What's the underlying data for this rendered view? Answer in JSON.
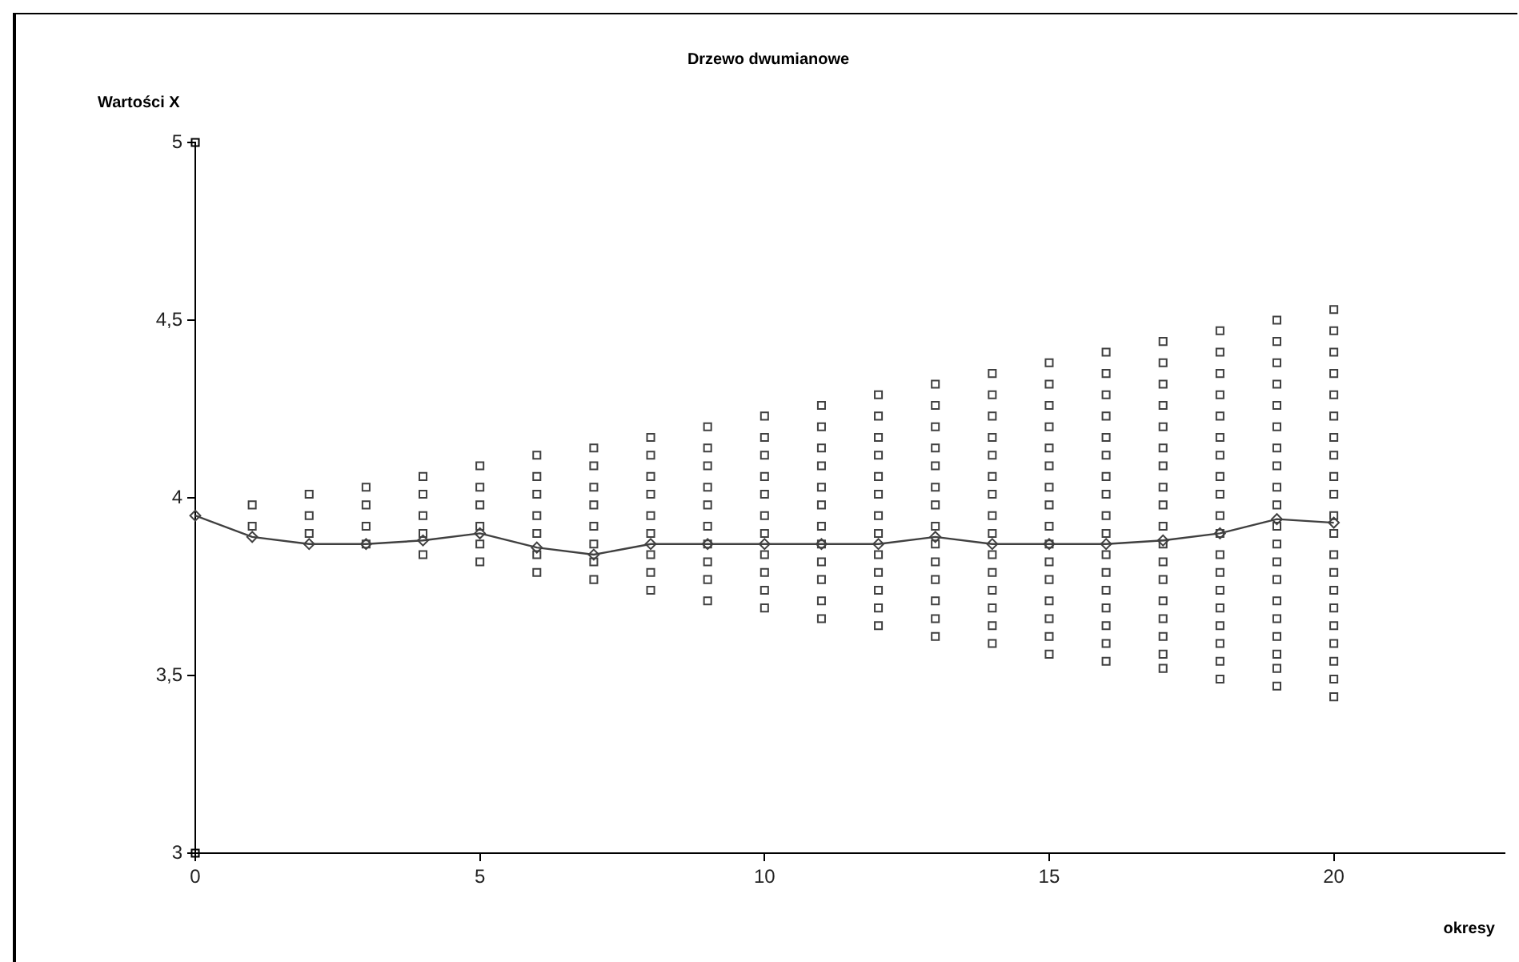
{
  "chart_data": {
    "type": "scatter",
    "title": "Drzewo dwumianowe",
    "xlabel": "okresy",
    "ylabel": "Wartości X",
    "xlim": [
      0,
      23
    ],
    "xticks": [
      0,
      5,
      10,
      15,
      20
    ],
    "ylim": [
      3,
      5
    ],
    "yticks": [
      3,
      {
        "value": 3.5,
        "label": "3,5"
      },
      4,
      {
        "value": 4.5,
        "label": "4,5"
      },
      5
    ],
    "grid": false,
    "legend": false,
    "series": [
      {
        "type": "scatter",
        "marker": "square",
        "color": "#404040",
        "x": [
          1,
          1,
          2,
          2,
          2,
          3,
          3,
          3,
          3,
          4,
          4,
          4,
          4,
          4,
          5,
          5,
          5,
          5,
          5,
          5,
          6,
          6,
          6,
          6,
          6,
          6,
          6,
          7,
          7,
          7,
          7,
          7,
          7,
          7,
          7,
          8,
          8,
          8,
          8,
          8,
          8,
          8,
          8,
          8,
          9,
          9,
          9,
          9,
          9,
          9,
          9,
          9,
          9,
          9,
          10,
          10,
          10,
          10,
          10,
          10,
          10,
          10,
          10,
          10,
          10,
          11,
          11,
          11,
          11,
          11,
          11,
          11,
          11,
          11,
          11,
          11,
          11,
          12,
          12,
          12,
          12,
          12,
          12,
          12,
          12,
          12,
          12,
          12,
          12,
          12,
          13,
          13,
          13,
          13,
          13,
          13,
          13,
          13,
          13,
          13,
          13,
          13,
          13,
          13,
          14,
          14,
          14,
          14,
          14,
          14,
          14,
          14,
          14,
          14,
          14,
          14,
          14,
          14,
          14,
          15,
          15,
          15,
          15,
          15,
          15,
          15,
          15,
          15,
          15,
          15,
          15,
          15,
          15,
          15,
          15,
          16,
          16,
          16,
          16,
          16,
          16,
          16,
          16,
          16,
          16,
          16,
          16,
          16,
          16,
          16,
          16,
          16,
          17,
          17,
          17,
          17,
          17,
          17,
          17,
          17,
          17,
          17,
          17,
          17,
          17,
          17,
          17,
          17,
          17,
          17,
          18,
          18,
          18,
          18,
          18,
          18,
          18,
          18,
          18,
          18,
          18,
          18,
          18,
          18,
          18,
          18,
          18,
          18,
          18,
          19,
          19,
          19,
          19,
          19,
          19,
          19,
          19,
          19,
          19,
          19,
          19,
          19,
          19,
          19,
          19,
          19,
          19,
          19,
          19,
          20,
          20,
          20,
          20,
          20,
          20,
          20,
          20,
          20,
          20,
          20,
          20,
          20,
          20,
          20,
          20,
          20,
          20,
          20,
          20,
          20
        ],
        "values": [
          3.98,
          3.92,
          4.01,
          3.95,
          3.9,
          4.03,
          3.98,
          3.92,
          3.87,
          4.06,
          4.01,
          3.95,
          3.9,
          3.84,
          4.09,
          4.03,
          3.98,
          3.92,
          3.87,
          3.82,
          4.12,
          4.06,
          4.01,
          3.95,
          3.9,
          3.84,
          3.79,
          4.14,
          4.09,
          4.03,
          3.98,
          3.92,
          3.87,
          3.82,
          3.77,
          4.17,
          4.12,
          4.06,
          4.01,
          3.95,
          3.9,
          3.84,
          3.79,
          3.74,
          4.2,
          4.14,
          4.09,
          4.03,
          3.98,
          3.92,
          3.87,
          3.82,
          3.77,
          3.71,
          4.23,
          4.17,
          4.12,
          4.06,
          4.01,
          3.95,
          3.9,
          3.84,
          3.79,
          3.74,
          3.69,
          4.26,
          4.2,
          4.14,
          4.09,
          4.03,
          3.98,
          3.92,
          3.87,
          3.82,
          3.77,
          3.71,
          3.66,
          4.29,
          4.23,
          4.17,
          4.12,
          4.06,
          4.01,
          3.95,
          3.9,
          3.84,
          3.79,
          3.74,
          3.69,
          3.64,
          4.32,
          4.26,
          4.2,
          4.14,
          4.09,
          4.03,
          3.98,
          3.92,
          3.87,
          3.82,
          3.77,
          3.71,
          3.66,
          3.61,
          4.35,
          4.29,
          4.23,
          4.17,
          4.12,
          4.06,
          4.01,
          3.95,
          3.9,
          3.84,
          3.79,
          3.74,
          3.69,
          3.64,
          3.59,
          4.38,
          4.32,
          4.26,
          4.2,
          4.14,
          4.09,
          4.03,
          3.98,
          3.92,
          3.87,
          3.82,
          3.77,
          3.71,
          3.66,
          3.61,
          3.56,
          4.41,
          4.35,
          4.29,
          4.23,
          4.17,
          4.12,
          4.06,
          4.01,
          3.95,
          3.9,
          3.84,
          3.79,
          3.74,
          3.69,
          3.64,
          3.59,
          3.54,
          4.44,
          4.38,
          4.32,
          4.26,
          4.2,
          4.14,
          4.09,
          4.03,
          3.98,
          3.92,
          3.87,
          3.82,
          3.77,
          3.71,
          3.66,
          3.61,
          3.56,
          3.52,
          4.47,
          4.41,
          4.35,
          4.29,
          4.23,
          4.17,
          4.12,
          4.06,
          4.01,
          3.95,
          3.9,
          3.84,
          3.79,
          3.74,
          3.69,
          3.64,
          3.59,
          3.54,
          3.49,
          4.5,
          4.44,
          4.38,
          4.32,
          4.26,
          4.2,
          4.14,
          4.09,
          4.03,
          3.98,
          3.92,
          3.87,
          3.82,
          3.77,
          3.71,
          3.66,
          3.61,
          3.56,
          3.52,
          3.47,
          4.53,
          4.47,
          4.41,
          4.35,
          4.29,
          4.23,
          4.17,
          4.12,
          4.06,
          4.01,
          3.95,
          3.9,
          3.84,
          3.79,
          3.74,
          3.69,
          3.64,
          3.59,
          3.54,
          3.49,
          3.44
        ]
      },
      {
        "type": "line",
        "marker": "diamond",
        "line_style": "solid",
        "color": "#404040",
        "x": [
          0,
          1,
          2,
          3,
          4,
          5,
          6,
          7,
          8,
          9,
          10,
          11,
          12,
          13,
          14,
          15,
          16,
          17,
          18,
          19,
          20
        ],
        "values": [
          3.95,
          3.89,
          3.87,
          3.87,
          3.88,
          3.9,
          3.86,
          3.84,
          3.87,
          3.87,
          3.87,
          3.87,
          3.87,
          3.89,
          3.87,
          3.87,
          3.87,
          3.88,
          3.9,
          3.94,
          3.93
        ]
      },
      {
        "type": "scatter",
        "marker": "square",
        "color": "#000000",
        "x": [
          0,
          0
        ],
        "values": [
          5,
          3
        ]
      }
    ]
  }
}
